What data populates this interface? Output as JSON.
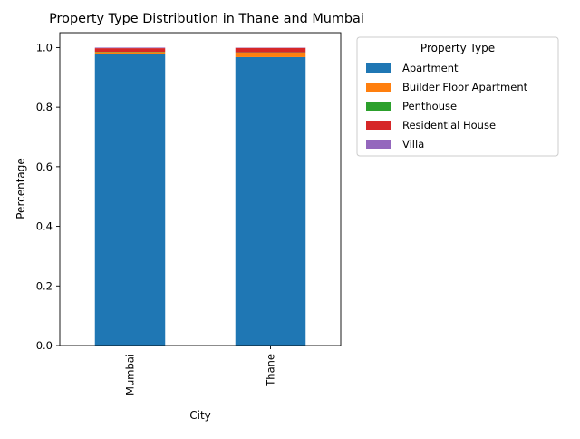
{
  "chart_data": {
    "type": "bar",
    "stacked": true,
    "title": "Property Type Distribution in Thane and Mumbai",
    "xlabel": "City",
    "ylabel": "Percentage",
    "categories": [
      "Mumbai",
      "Thane"
    ],
    "ylim": [
      0,
      1.05
    ],
    "yticks": [
      0.0,
      0.2,
      0.4,
      0.6,
      0.8,
      1.0
    ],
    "ytick_labels": [
      "0.0",
      "0.2",
      "0.4",
      "0.6",
      "0.8",
      "1.0"
    ],
    "grid": false,
    "legend": {
      "title": "Property Type",
      "placement": "outside-right-top"
    },
    "series": [
      {
        "name": "Apartment",
        "color": "#1f77b4",
        "values": [
          0.978,
          0.968
        ]
      },
      {
        "name": "Builder Floor Apartment",
        "color": "#ff7f0e",
        "values": [
          0.007,
          0.015
        ]
      },
      {
        "name": "Penthouse",
        "color": "#2ca02c",
        "values": [
          0.001,
          0.001
        ]
      },
      {
        "name": "Residential House",
        "color": "#d62728",
        "values": [
          0.012,
          0.015
        ]
      },
      {
        "name": "Villa",
        "color": "#9467bd",
        "values": [
          0.002,
          0.001
        ]
      }
    ]
  }
}
